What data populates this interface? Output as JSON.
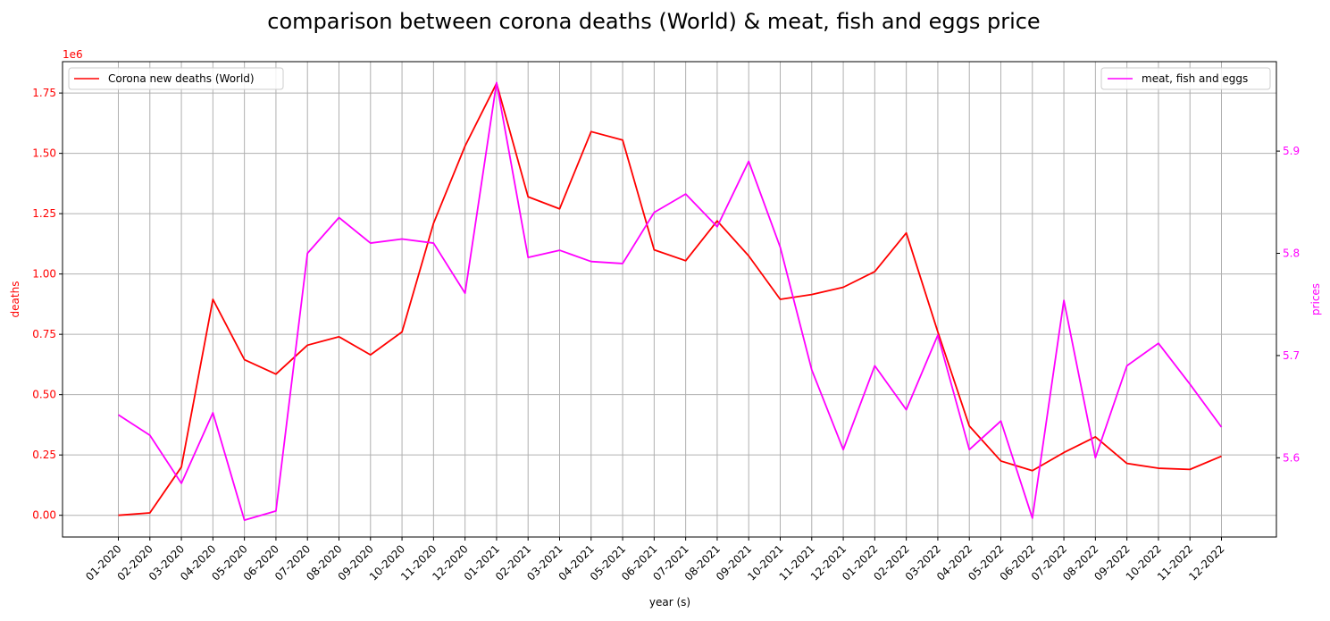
{
  "chart_data": {
    "type": "line",
    "title": "comparison between corona deaths (World) & meat, fish and eggs price",
    "xlabel": "year (s)",
    "ylabel_left": "deaths",
    "ylabel_right": "prices",
    "left_axis_offset_label": "1e6",
    "categories": [
      "01-2020",
      "02-2020",
      "03-2020",
      "04-2020",
      "05-2020",
      "06-2020",
      "07-2020",
      "08-2020",
      "09-2020",
      "10-2020",
      "11-2020",
      "12-2020",
      "01-2021",
      "02-2021",
      "03-2021",
      "04-2021",
      "05-2021",
      "06-2021",
      "07-2021",
      "08-2021",
      "09-2021",
      "10-2021",
      "11-2021",
      "12-2021",
      "01-2022",
      "02-2022",
      "03-2022",
      "04-2022",
      "05-2022",
      "06-2022",
      "07-2022",
      "08-2022",
      "09-2022",
      "10-2022",
      "11-2022",
      "12-2022"
    ],
    "left_ylim": [
      -0.09,
      1.88
    ],
    "left_ticks": [
      "0.00",
      "0.25",
      "0.50",
      "0.75",
      "1.00",
      "1.25",
      "1.50",
      "1.75"
    ],
    "left_tick_values": [
      0,
      0.25,
      0.5,
      0.75,
      1.0,
      1.25,
      1.5,
      1.75
    ],
    "right_ylim": [
      5.5225,
      5.9875
    ],
    "right_ticks": [
      "5.6",
      "5.7",
      "5.8",
      "5.9"
    ],
    "right_tick_values": [
      5.6,
      5.7,
      5.8,
      5.9
    ],
    "grid": true,
    "series": [
      {
        "name": "Corona new deaths (World)",
        "axis": "left",
        "color": "#ff0000",
        "legend_position": "top-left",
        "values": [
          0.0,
          0.01,
          0.2,
          0.895,
          0.645,
          0.585,
          0.705,
          0.74,
          0.665,
          0.76,
          1.21,
          1.53,
          1.79,
          1.32,
          1.27,
          1.59,
          1.555,
          1.1,
          1.055,
          1.22,
          1.075,
          0.895,
          0.915,
          0.945,
          1.01,
          1.17,
          0.76,
          0.37,
          0.225,
          0.185,
          0.26,
          0.325,
          0.215,
          0.195,
          0.19,
          0.245
        ]
      },
      {
        "name": "meat, fish and eggs",
        "axis": "right",
        "color": "#ff00ff",
        "legend_position": "top-right",
        "values": [
          5.642,
          5.622,
          5.575,
          5.644,
          5.539,
          5.548,
          5.8,
          5.835,
          5.81,
          5.814,
          5.81,
          5.761,
          5.967,
          5.796,
          5.803,
          5.792,
          5.79,
          5.84,
          5.858,
          5.826,
          5.89,
          5.806,
          5.686,
          5.608,
          5.69,
          5.647,
          5.72,
          5.608,
          5.636,
          5.541,
          5.754,
          5.6,
          5.69,
          5.712,
          5.672,
          5.63
        ]
      }
    ]
  }
}
